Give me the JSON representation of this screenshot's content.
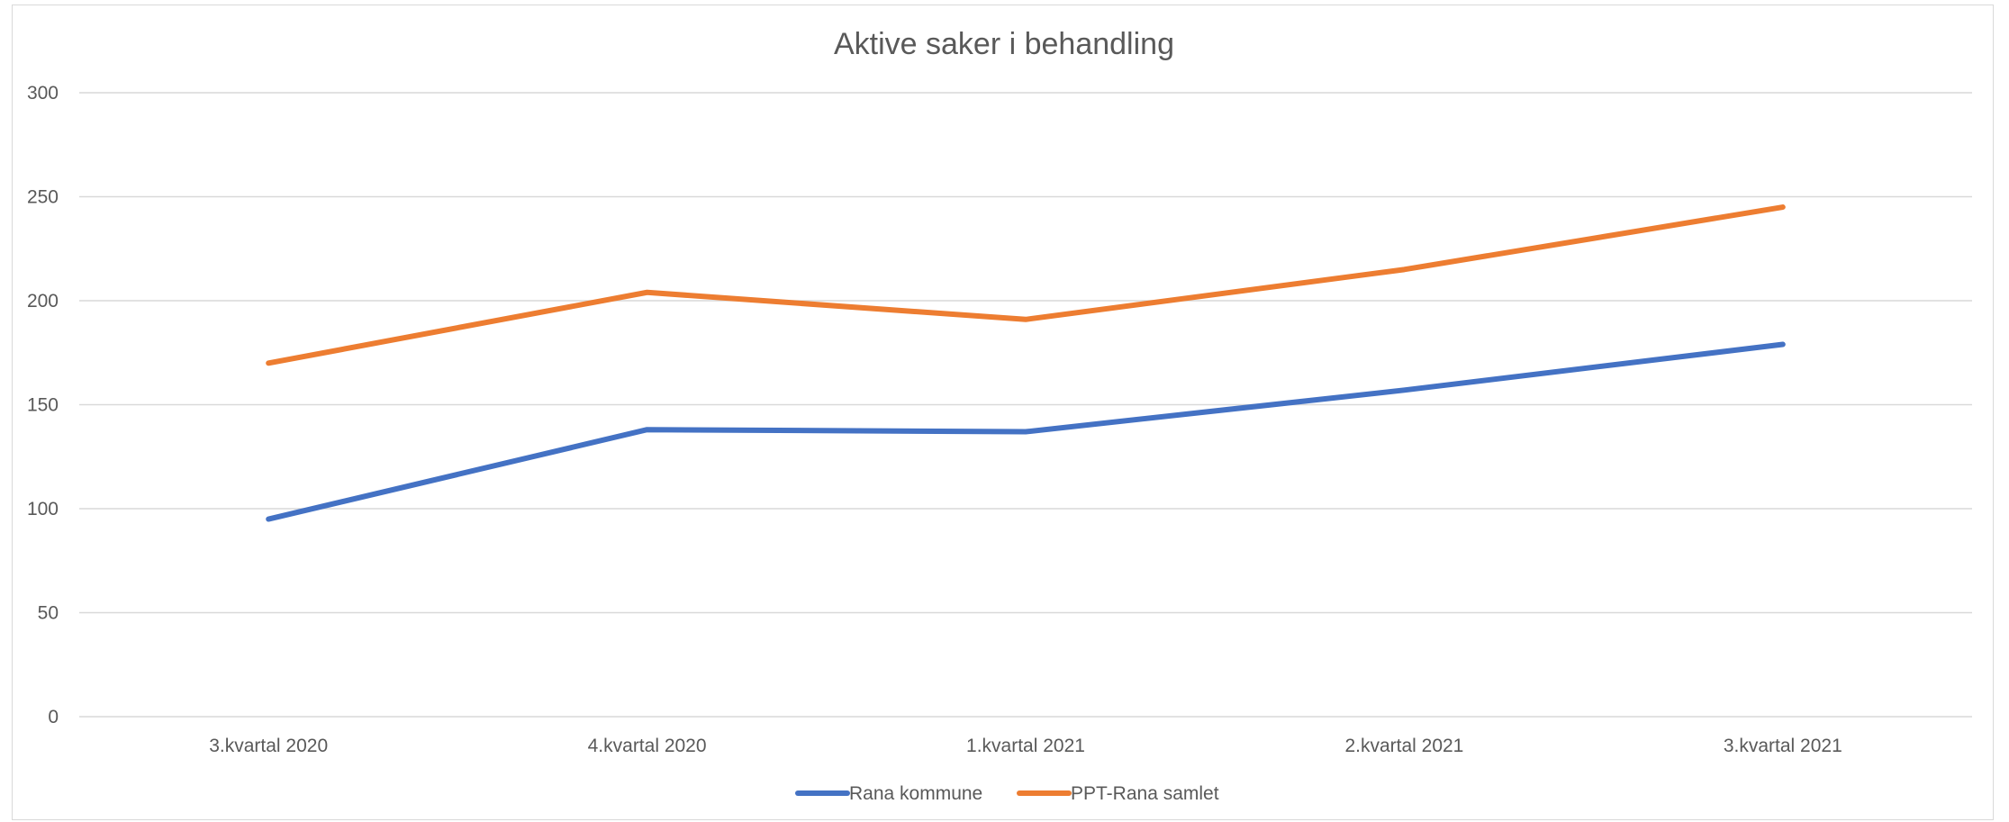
{
  "chart_data": {
    "type": "line",
    "title": "Aktive saker i behandling",
    "xlabel": "",
    "ylabel": "",
    "categories": [
      "3.kvartal 2020",
      "4.kvartal 2020",
      "1.kvartal 2021",
      "2.kvartal 2021",
      "3.kvartal 2021"
    ],
    "ylim": [
      0,
      300
    ],
    "yticks": [
      "0",
      "50",
      "100",
      "150",
      "200",
      "250",
      "300"
    ],
    "grid": true,
    "legend": "bottom",
    "series": [
      {
        "name": "Rana kommune",
        "values": [
          95,
          138,
          137,
          157,
          179
        ],
        "color": "#4472C4"
      },
      {
        "name": "PPT-Rana samlet",
        "values": [
          170,
          204,
          191,
          215,
          245
        ],
        "color": "#ED7D31"
      }
    ]
  }
}
